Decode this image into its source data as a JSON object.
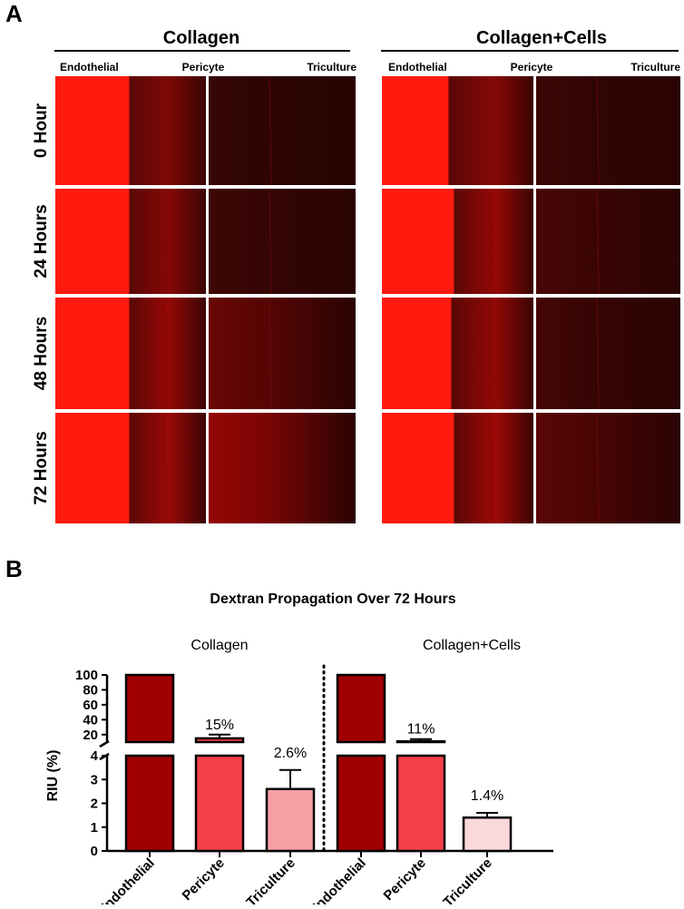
{
  "panel_a": {
    "label": "A",
    "groups": [
      {
        "title": "Collagen",
        "zones": [
          "Endothelial",
          "Pericyte",
          "Triculture"
        ]
      },
      {
        "title": "Collagen+Cells",
        "zones": [
          "Endothelial",
          "Pericyte",
          "Triculture"
        ]
      }
    ],
    "timepoints": [
      "0 Hour",
      "24 Hours",
      "48 Hours",
      "72 Hours"
    ],
    "colors": {
      "bright": "#ff1a10",
      "dark": "#2a0403"
    }
  },
  "panel_b": {
    "label": "B",
    "chart_data": {
      "type": "bar",
      "title": "Dextran Propagation Over 72 Hours",
      "ylabel": "RIU (%)",
      "y_axis": {
        "broken": true,
        "lower_range": [
          0,
          4
        ],
        "lower_ticks": [
          "0",
          "1",
          "2",
          "3",
          "4"
        ],
        "upper_range": [
          10,
          100
        ],
        "upper_ticks": [
          "20",
          "40",
          "60",
          "80",
          "100"
        ]
      },
      "groups": [
        {
          "name": "Collagen",
          "categories": [
            "Endothelial",
            "Pericyte",
            "Triculture"
          ],
          "values": [
            100,
            15,
            2.6
          ],
          "errors": [
            0,
            5,
            0.8
          ],
          "labels": [
            "",
            "15%",
            "2.6%"
          ],
          "colors": [
            "#a00003",
            "#f5404a",
            "#f7a1a5"
          ]
        },
        {
          "name": "Collagen+Cells",
          "categories": [
            "Endothelial",
            "Pericyte",
            "Triculture"
          ],
          "values": [
            100,
            11,
            1.4
          ],
          "errors": [
            0,
            3,
            0.2
          ],
          "labels": [
            "",
            "11%",
            "1.4%"
          ],
          "colors": [
            "#a00003",
            "#f5404a",
            "#fbd9da"
          ]
        }
      ]
    }
  }
}
